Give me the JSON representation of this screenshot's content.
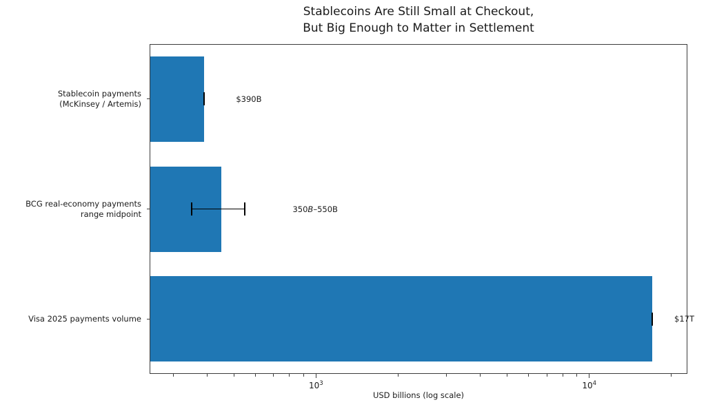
{
  "title": {
    "line1": "Stablecoins Are Still Small at Checkout,",
    "line2": "But Big Enough to Matter in Settlement"
  },
  "chart_data": {
    "type": "bar",
    "orientation": "horizontal",
    "title": "Stablecoins Are Still Small at Checkout,\nBut Big Enough to Matter in Settlement",
    "xlabel": "USD billions (log scale)",
    "xscale": "log",
    "xlim": [
      246,
      22860
    ],
    "grid": false,
    "legend": false,
    "bar_color": "#1f77b4",
    "error_color": "#000000",
    "axis_color": "#3a3a3a",
    "x_major_ticks": [
      {
        "value": 1000,
        "base": "10",
        "exp": "3"
      },
      {
        "value": 10000,
        "base": "10",
        "exp": "4"
      }
    ],
    "bars": [
      {
        "category_lines": [
          "Stablecoin payments",
          "(McKinsey / Artemis)"
        ],
        "value": 390,
        "err_lo": 390,
        "err_hi": 390,
        "annotation_parts": [
          {
            "text": "$390B",
            "italic": false
          }
        ]
      },
      {
        "category_lines": [
          "BCG real-economy payments",
          "range midpoint"
        ],
        "value": 450,
        "err_lo": 350,
        "err_hi": 550,
        "annotation_parts": [
          {
            "text": "350",
            "italic": false
          },
          {
            "text": "B",
            "italic": true
          },
          {
            "text": "–550B",
            "italic": false
          }
        ]
      },
      {
        "category_lines": [
          "Visa 2025 payments volume"
        ],
        "value": 17000,
        "err_lo": 17000,
        "err_hi": 17000,
        "annotation_parts": [
          {
            "text": "$17T",
            "italic": false
          }
        ]
      }
    ]
  }
}
